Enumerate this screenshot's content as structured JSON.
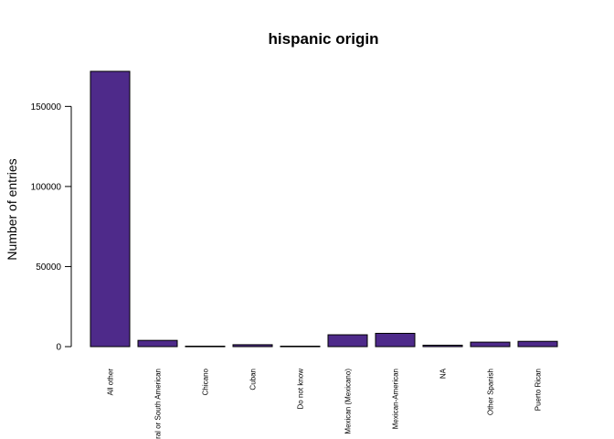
{
  "chart_data": {
    "type": "bar",
    "title": "hispanic origin",
    "xlabel": "",
    "ylabel": "Number of entries",
    "categories": [
      "All other",
      "Central or South American",
      "Chicano",
      "Cuban",
      "Do not know",
      "Mexican (Mexicano)",
      "Mexican-American",
      "NA",
      "Other Spanish",
      "Puerto Rican"
    ],
    "values": [
      171900,
      3900,
      300,
      1200,
      300,
      7400,
      8300,
      900,
      2800,
      3300
    ],
    "yticks": [
      0,
      50000,
      100000,
      150000
    ],
    "ylim": [
      0,
      171900
    ],
    "bar_color": "#4e2a8a",
    "grid": false
  }
}
